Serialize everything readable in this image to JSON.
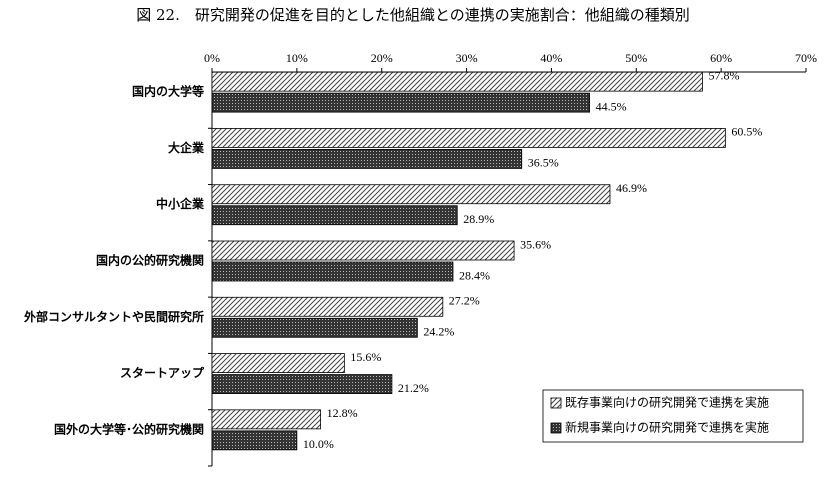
{
  "chart_data": {
    "type": "hbar",
    "title": "図 22.　研究開発の促進を目的とした他組織との連携の実施割合：他組織の種類別",
    "categories": [
      "国内の大学等",
      "大企業",
      "中小企業",
      "国内の公的研究機関",
      "外部コンサルタントや民間研究所",
      "スタートアップ",
      "国外の大学等･公的研究機関"
    ],
    "series": [
      {
        "name": "既存事業向けの研究開発で連携を実施",
        "color": "#444444",
        "pattern": "hatch",
        "values": [
          57.8,
          60.5,
          46.9,
          35.6,
          27.2,
          15.6,
          12.8
        ],
        "value_labels": [
          "57.8%",
          "60.5%",
          "46.9%",
          "35.6%",
          "27.2%",
          "15.6%",
          "12.8%"
        ]
      },
      {
        "name": "新規事業向けの研究開発で連携を実施",
        "color": "#333333",
        "pattern": "dots",
        "values": [
          44.5,
          36.5,
          28.9,
          28.4,
          24.2,
          21.2,
          10.0
        ],
        "value_labels": [
          "44.5%",
          "36.5%",
          "28.9%",
          "28.4%",
          "24.2%",
          "21.2%",
          "10.0%"
        ]
      }
    ],
    "xlim": [
      0,
      70
    ],
    "xticks": [
      {
        "value": 0,
        "label": "0%"
      },
      {
        "value": 10,
        "label": "10%"
      },
      {
        "value": 20,
        "label": "20%"
      },
      {
        "value": 30,
        "label": "30%"
      },
      {
        "value": 40,
        "label": "40%"
      },
      {
        "value": 50,
        "label": "50%"
      },
      {
        "value": 60,
        "label": "60%"
      },
      {
        "value": 70,
        "label": "70%"
      }
    ],
    "grid": false,
    "legend": "lower right"
  }
}
